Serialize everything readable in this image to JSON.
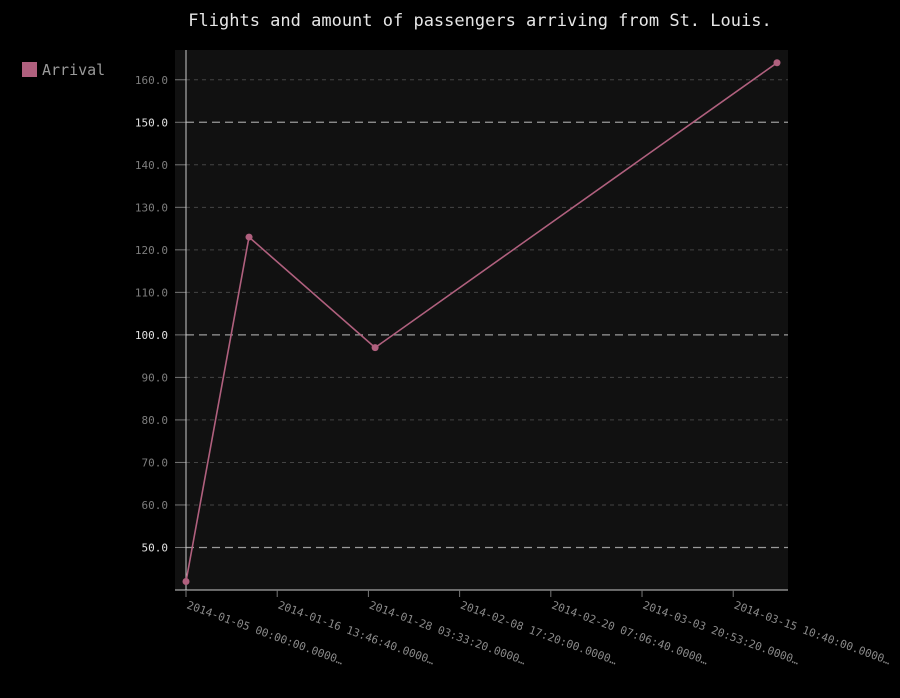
{
  "chart_data": {
    "type": "line",
    "title": "Flights and amount of passengers arriving from St. Louis.",
    "legend": {
      "position": "top-left",
      "entries": [
        "Arrival"
      ]
    },
    "series": [
      {
        "name": "Arrival",
        "color": "#b0607e",
        "points": [
          {
            "x": "2014-01-05 00:00:00",
            "y": 42
          },
          {
            "x": "2014-01-13 00:00:00",
            "y": 123
          },
          {
            "x": "2014-01-29 00:00:00",
            "y": 97
          },
          {
            "x": "2014-03-21 00:00:00",
            "y": 164
          }
        ]
      }
    ],
    "xaxis": {
      "type": "datetime",
      "min": "2014-01-05 00:00:00",
      "max": "2014-03-21 00:00:00",
      "tick_values": [
        "2014-01-05 00:00:00",
        "2014-01-16 13:46:40",
        "2014-01-28 03:33:20",
        "2014-02-08 17:20:00",
        "2014-02-20 07:06:40",
        "2014-03-03 20:53:20",
        "2014-03-15 10:40:00"
      ],
      "tick_labels": [
        "2014-01-05 00:00:00.0000…",
        "2014-01-16 13:46:40.0000…",
        "2014-01-28 03:33:20.0000…",
        "2014-02-08 17:20:00.0000…",
        "2014-02-20 07:06:40.0000…",
        "2014-03-03 20:53:20.0000…",
        "2014-03-15 10:40:00.0000…"
      ]
    },
    "yaxis": {
      "min": 40,
      "max": 167,
      "ticks": [
        50,
        60,
        70,
        80,
        90,
        100,
        110,
        120,
        130,
        140,
        150,
        160
      ],
      "tick_labels": [
        "50.0",
        "60.0",
        "70.0",
        "80.0",
        "90.0",
        "100.0",
        "110.0",
        "120.0",
        "130.0",
        "140.0",
        "150.0",
        "160.0"
      ],
      "major_ticks": [
        50,
        100,
        150
      ]
    },
    "grid": true,
    "colors": {
      "background": "#000000",
      "plot_background": "#111111",
      "grid": "#444444",
      "grid_major": "#9a9a9a",
      "axis": "#cccccc",
      "series": "#b0607e"
    }
  }
}
